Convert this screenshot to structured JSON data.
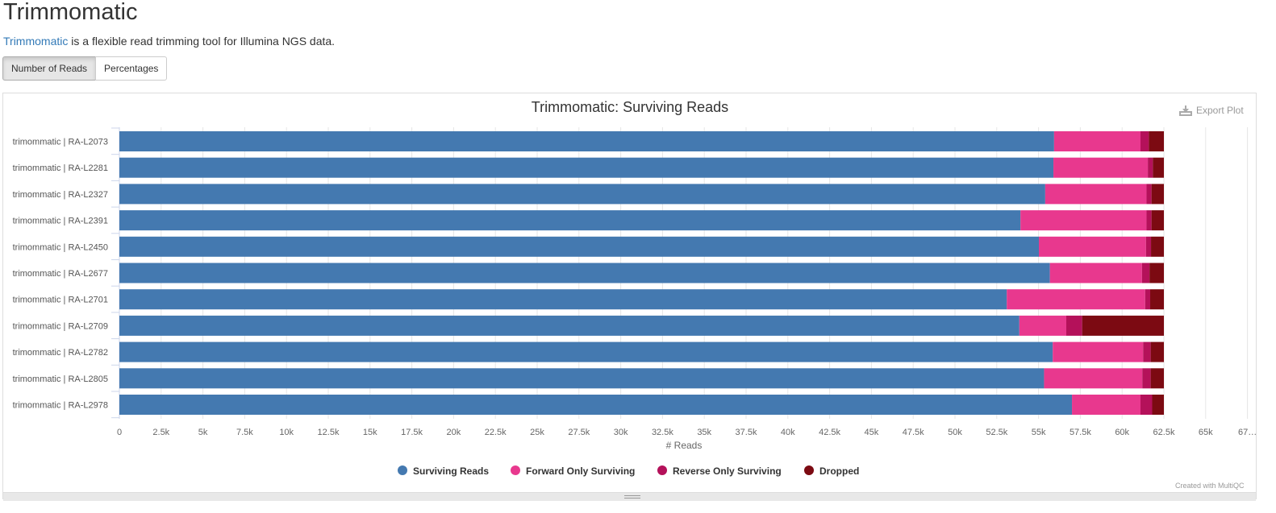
{
  "header": {
    "title": "Trimmomatic",
    "intro_link": "Trimmomatic",
    "intro_text": " is a flexible read trimming tool for Illumina NGS data."
  },
  "buttons": {
    "counts": "Number of Reads",
    "percentages": "Percentages",
    "active": "counts"
  },
  "plot": {
    "export_label": "Export Plot",
    "export_icon": "download-icon",
    "credit": "Created with MultiQC"
  },
  "chart_data": {
    "type": "bar",
    "orientation": "horizontal",
    "stacked": true,
    "title": "Trimmomatic: Surviving Reads",
    "xlabel": "# Reads",
    "ylabel": "",
    "xlim": [
      0,
      67500
    ],
    "xticks": [
      "0",
      "2.5k",
      "5k",
      "7.5k",
      "10k",
      "12.5k",
      "15k",
      "17.5k",
      "20k",
      "22.5k",
      "25k",
      "27.5k",
      "30k",
      "32.5k",
      "35k",
      "37.5k",
      "40k",
      "42.5k",
      "45k",
      "47.5k",
      "50k",
      "52.5k",
      "55k",
      "57.5k",
      "60k",
      "62.5k",
      "65k",
      "67…"
    ],
    "grid": true,
    "legend_position": "bottom",
    "categories": [
      "trimommatic | RA-L2073",
      "trimommatic | RA-L2281",
      "trimommatic | RA-L2327",
      "trimommatic | RA-L2391",
      "trimommatic | RA-L2450",
      "trimommatic | RA-L2677",
      "trimommatic | RA-L2701",
      "trimommatic | RA-L2709",
      "trimommatic | RA-L2782",
      "trimommatic | RA-L2805",
      "trimommatic | RA-L2978"
    ],
    "series": [
      {
        "name": "Surviving Reads",
        "color": "#4479b0",
        "values": [
          55930,
          55890,
          55400,
          53920,
          55020,
          55680,
          53100,
          53850,
          55850,
          55330,
          57000
        ]
      },
      {
        "name": "Forward Only Surviving",
        "color": "#e8388e",
        "values": [
          5170,
          5650,
          6060,
          7540,
          6410,
          5510,
          8280,
          2810,
          5410,
          5880,
          4100
        ]
      },
      {
        "name": "Reverse Only Surviving",
        "color": "#b4115a",
        "values": [
          500,
          300,
          300,
          300,
          300,
          450,
          300,
          950,
          450,
          500,
          700
        ]
      },
      {
        "name": "Dropped",
        "color": "#7c0a12",
        "values": [
          900,
          660,
          740,
          740,
          770,
          860,
          820,
          4890,
          790,
          790,
          700
        ]
      }
    ]
  }
}
